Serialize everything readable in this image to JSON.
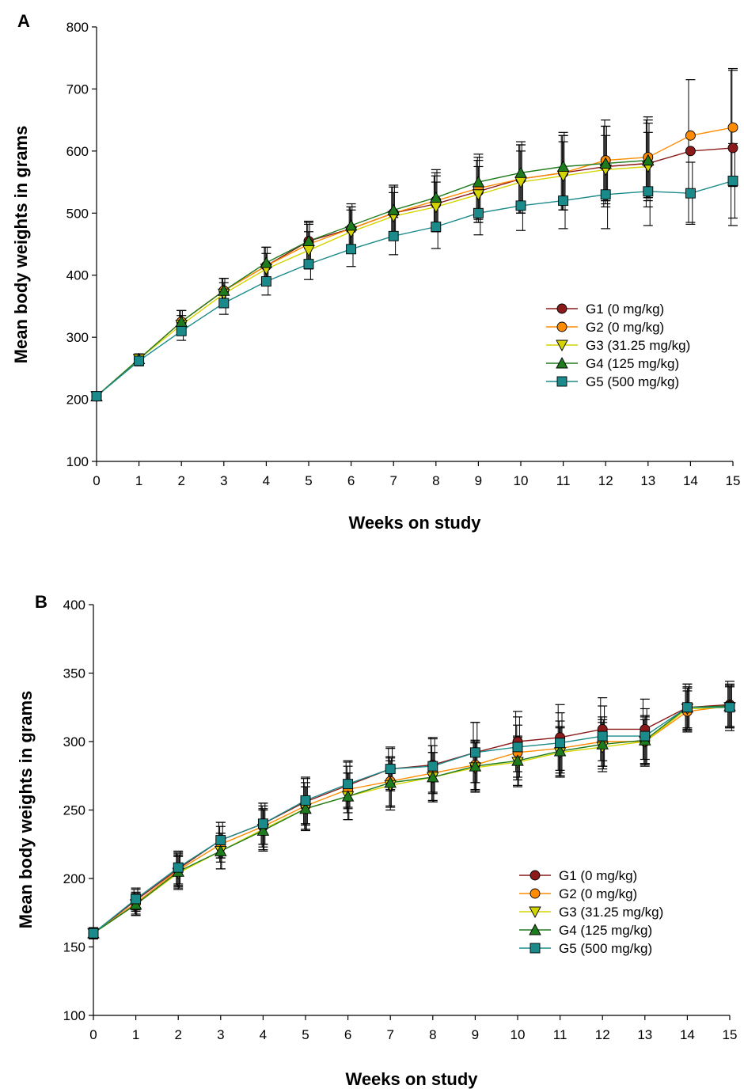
{
  "chart_data": [
    {
      "type": "line",
      "panel_label": "A",
      "xlabel": "Weeks on study",
      "ylabel": "Mean body weights in grams",
      "xlim": [
        0,
        15
      ],
      "ylim": [
        100,
        800
      ],
      "x_ticks": [
        0,
        1,
        2,
        3,
        4,
        5,
        6,
        7,
        8,
        9,
        10,
        11,
        12,
        13,
        14,
        15
      ],
      "y_ticks": [
        100,
        200,
        300,
        400,
        500,
        600,
        700,
        800
      ],
      "grid": false,
      "legend_position": "middle-right",
      "x": [
        0,
        1,
        2,
        3,
        4,
        5,
        6,
        7,
        8,
        9,
        10,
        11,
        12,
        13,
        14,
        15
      ],
      "series": [
        {
          "name": "G1 (0 mg/kg)",
          "color": "#8b1a1a",
          "marker": "circle",
          "values": [
            205,
            265,
            325,
            375,
            415,
            455,
            475,
            500,
            515,
            535,
            555,
            565,
            575,
            580,
            600,
            605
          ],
          "error": [
            6,
            8,
            18,
            20,
            30,
            32,
            35,
            42,
            45,
            50,
            55,
            60,
            65,
            70,
            115,
            125
          ]
        },
        {
          "name": "G2 (0 mg/kg)",
          "color": "#ff8c00",
          "marker": "circle",
          "values": [
            205,
            265,
            325,
            375,
            415,
            450,
            475,
            500,
            520,
            540,
            555,
            565,
            585,
            590,
            625,
            638
          ],
          "error": [
            6,
            8,
            18,
            20,
            30,
            32,
            35,
            42,
            45,
            50,
            55,
            60,
            65,
            65,
            0,
            95
          ]
        },
        {
          "name": "G3 (31.25 mg/kg)",
          "color": "#d4d400",
          "marker": "triangle-down",
          "values": [
            205,
            265,
            320,
            370,
            410,
            440,
            470,
            495,
            510,
            530,
            550,
            560,
            570,
            575,
            null,
            null
          ],
          "error": [
            6,
            8,
            15,
            18,
            25,
            30,
            35,
            38,
            40,
            45,
            50,
            55,
            55,
            55,
            0,
            0
          ]
        },
        {
          "name": "G4 (125 mg/kg)",
          "color": "#1e7b1e",
          "marker": "triangle-up",
          "values": [
            205,
            265,
            325,
            375,
            420,
            455,
            480,
            505,
            525,
            550,
            565,
            575,
            580,
            585,
            null,
            null
          ],
          "error": [
            6,
            8,
            18,
            20,
            25,
            30,
            35,
            40,
            45,
            45,
            50,
            55,
            60,
            60,
            0,
            0
          ]
        },
        {
          "name": "G5 (500 mg/kg)",
          "color": "#1a8a8a",
          "marker": "square",
          "values": [
            205,
            262,
            310,
            355,
            390,
            418,
            442,
            463,
            478,
            500,
            512,
            520,
            530,
            535,
            532,
            552
          ],
          "error": [
            5,
            8,
            15,
            18,
            22,
            25,
            28,
            30,
            35,
            35,
            40,
            45,
            55,
            55,
            50,
            60
          ]
        }
      ]
    },
    {
      "type": "line",
      "panel_label": "B",
      "xlabel": "Weeks on study",
      "ylabel": "Mean body weights in grams",
      "xlim": [
        0,
        15
      ],
      "ylim": [
        100,
        400
      ],
      "x_ticks": [
        0,
        1,
        2,
        3,
        4,
        5,
        6,
        7,
        8,
        9,
        10,
        11,
        12,
        13,
        14,
        15
      ],
      "y_ticks": [
        100,
        150,
        200,
        250,
        300,
        350,
        400
      ],
      "grid": false,
      "legend_position": "middle-right",
      "x": [
        0,
        1,
        2,
        3,
        4,
        5,
        6,
        7,
        8,
        9,
        10,
        11,
        12,
        13,
        14,
        15
      ],
      "series": [
        {
          "name": "G1 (0 mg/kg)",
          "color": "#8b1a1a",
          "marker": "circle",
          "values": [
            160,
            184,
            207,
            228,
            240,
            256,
            268,
            280,
            283,
            292,
            300,
            303,
            309,
            309,
            325,
            327
          ],
          "error": [
            4,
            8,
            12,
            13,
            15,
            17,
            17,
            15,
            20,
            22,
            22,
            24,
            23,
            22,
            17,
            17
          ]
        },
        {
          "name": "G2 (0 mg/kg)",
          "color": "#ff8c00",
          "marker": "circle",
          "values": [
            160,
            182,
            206,
            225,
            238,
            253,
            265,
            271,
            277,
            283,
            292,
            295,
            300,
            300,
            322,
            326
          ],
          "error": [
            4,
            8,
            12,
            13,
            15,
            17,
            17,
            18,
            20,
            18,
            20,
            20,
            18,
            16,
            15,
            15
          ]
        },
        {
          "name": "G3 (31.25 mg/kg)",
          "color": "#d4d400",
          "marker": "triangle-down",
          "values": [
            160,
            181,
            204,
            220,
            236,
            251,
            260,
            268,
            274,
            281,
            285,
            292,
            296,
            300,
            324,
            325
          ],
          "error": [
            4,
            8,
            12,
            13,
            15,
            16,
            17,
            18,
            18,
            18,
            18,
            18,
            18,
            18,
            15,
            15
          ]
        },
        {
          "name": "G4 (125 mg/kg)",
          "color": "#1e7b1e",
          "marker": "triangle-up",
          "values": [
            160,
            181,
            205,
            220,
            235,
            251,
            260,
            270,
            274,
            282,
            286,
            293,
            298,
            301,
            325,
            326
          ],
          "error": [
            4,
            8,
            12,
            13,
            15,
            16,
            17,
            18,
            18,
            18,
            18,
            18,
            18,
            18,
            15,
            15
          ]
        },
        {
          "name": "G5 (500 mg/kg)",
          "color": "#1a8a8a",
          "marker": "square",
          "values": [
            160,
            185,
            208,
            228,
            240,
            257,
            269,
            280,
            282,
            292,
            296,
            299,
            304,
            304,
            325,
            325
          ],
          "error": [
            4,
            8,
            12,
            13,
            15,
            17,
            17,
            16,
            20,
            22,
            22,
            22,
            22,
            20,
            17,
            17
          ]
        }
      ]
    }
  ]
}
